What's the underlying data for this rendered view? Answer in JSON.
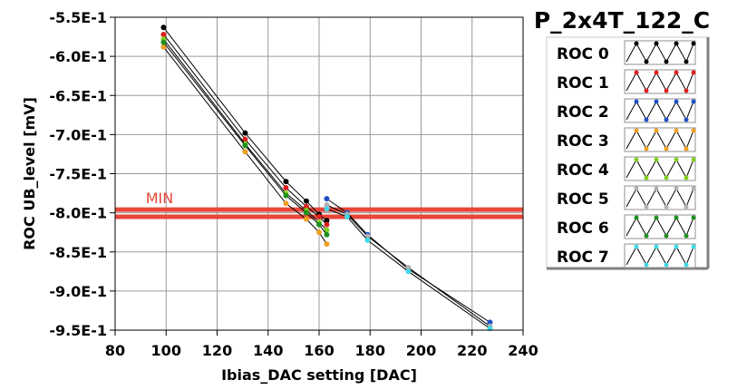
{
  "chart_data": {
    "type": "line",
    "title": "P_2x4T_122_C",
    "xlabel": "Ibias_DAC setting [DAC]",
    "ylabel": "ROC UB_level [mV]",
    "xlim": [
      80,
      240
    ],
    "ylim": [
      -0.95,
      -0.55
    ],
    "x_ticks": [
      {
        "value": 80,
        "label": "80"
      },
      {
        "value": 100,
        "label": "100"
      },
      {
        "value": 120,
        "label": "120"
      },
      {
        "value": 140,
        "label": "140"
      },
      {
        "value": 160,
        "label": "160"
      },
      {
        "value": 180,
        "label": "180"
      },
      {
        "value": 200,
        "label": "200"
      },
      {
        "value": 220,
        "label": "220"
      },
      {
        "value": 240,
        "label": "240"
      }
    ],
    "y_ticks": [
      {
        "value": -0.55,
        "label": "-5.5E-1"
      },
      {
        "value": -0.6,
        "label": "-6.0E-1"
      },
      {
        "value": -0.65,
        "label": "-6.5E-1"
      },
      {
        "value": -0.7,
        "label": "-7.0E-1"
      },
      {
        "value": -0.75,
        "label": "-7.5E-1"
      },
      {
        "value": -0.8,
        "label": "-8.0E-1"
      },
      {
        "value": -0.85,
        "label": "-8.5E-1"
      },
      {
        "value": -0.9,
        "label": "-9.0E-1"
      },
      {
        "value": -0.95,
        "label": "-9.5E-1"
      }
    ],
    "grid": true,
    "legend_position": "right",
    "annotation": {
      "label": "MIN",
      "y_upper": -0.796,
      "y_lower": -0.805,
      "color": "#e8473a"
    },
    "series": [
      {
        "name": "ROC 0",
        "color": "#000000",
        "x": [
          99,
          131,
          147,
          155,
          160,
          163
        ],
        "y": [
          -0.563,
          -0.698,
          -0.76,
          -0.785,
          -0.802,
          -0.81
        ]
      },
      {
        "name": "ROC 1",
        "color": "#e02020",
        "x": [
          99,
          131,
          147,
          155,
          160,
          163
        ],
        "y": [
          -0.572,
          -0.706,
          -0.768,
          -0.792,
          -0.805,
          -0.815
        ]
      },
      {
        "name": "ROC 2",
        "color": "#2050c8",
        "x": [
          163,
          171,
          179,
          195,
          227
        ],
        "y": [
          -0.782,
          -0.8,
          -0.828,
          -0.872,
          -0.94
        ]
      },
      {
        "name": "ROC 3",
        "color": "#f0a020",
        "x": [
          99,
          131,
          147,
          155,
          160,
          163
        ],
        "y": [
          -0.588,
          -0.722,
          -0.788,
          -0.808,
          -0.825,
          -0.84
        ]
      },
      {
        "name": "ROC 4",
        "color": "#80d020",
        "x": [
          99,
          131,
          147,
          155,
          160,
          163
        ],
        "y": [
          -0.578,
          -0.712,
          -0.775,
          -0.797,
          -0.812,
          -0.822
        ]
      },
      {
        "name": "ROC 5",
        "color": "#b0b0b0",
        "x": [
          163,
          171,
          179,
          195,
          227
        ],
        "y": [
          -0.79,
          -0.802,
          -0.83,
          -0.87,
          -0.945
        ]
      },
      {
        "name": "ROC 6",
        "color": "#209020",
        "x": [
          99,
          131,
          147,
          155,
          160,
          163
        ],
        "y": [
          -0.582,
          -0.714,
          -0.778,
          -0.8,
          -0.815,
          -0.828
        ]
      },
      {
        "name": "ROC 7",
        "color": "#40d8e8",
        "x": [
          163,
          171,
          179,
          195,
          227
        ],
        "y": [
          -0.795,
          -0.805,
          -0.835,
          -0.875,
          -0.948
        ]
      }
    ]
  }
}
